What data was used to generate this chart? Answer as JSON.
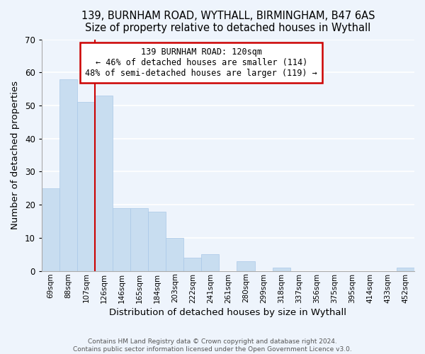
{
  "title1": "139, BURNHAM ROAD, WYTHALL, BIRMINGHAM, B47 6AS",
  "title2": "Size of property relative to detached houses in Wythall",
  "xlabel": "Distribution of detached houses by size in Wythall",
  "ylabel": "Number of detached properties",
  "bar_color": "#c8ddf0",
  "bar_edge_color": "#aac8e8",
  "categories": [
    "69sqm",
    "88sqm",
    "107sqm",
    "126sqm",
    "146sqm",
    "165sqm",
    "184sqm",
    "203sqm",
    "222sqm",
    "241sqm",
    "261sqm",
    "280sqm",
    "299sqm",
    "318sqm",
    "337sqm",
    "356sqm",
    "375sqm",
    "395sqm",
    "414sqm",
    "433sqm",
    "452sqm"
  ],
  "values": [
    25,
    58,
    51,
    53,
    19,
    19,
    18,
    10,
    4,
    5,
    0,
    3,
    0,
    1,
    0,
    0,
    0,
    0,
    0,
    0,
    1
  ],
  "ylim": [
    0,
    70
  ],
  "yticks": [
    0,
    10,
    20,
    30,
    40,
    50,
    60,
    70
  ],
  "ref_line_between": [
    2,
    3
  ],
  "annotation_title": "139 BURNHAM ROAD: 120sqm",
  "annotation_line1": "← 46% of detached houses are smaller (114)",
  "annotation_line2": "48% of semi-detached houses are larger (119) →",
  "annotation_box_color": "#ffffff",
  "annotation_box_edge_color": "#cc0000",
  "ref_line_color": "#cc0000",
  "footer1": "Contains HM Land Registry data © Crown copyright and database right 2024.",
  "footer2": "Contains public sector information licensed under the Open Government Licence v3.0.",
  "background_color": "#eef4fc",
  "plot_background_color": "#eef4fc",
  "grid_color": "#ffffff"
}
